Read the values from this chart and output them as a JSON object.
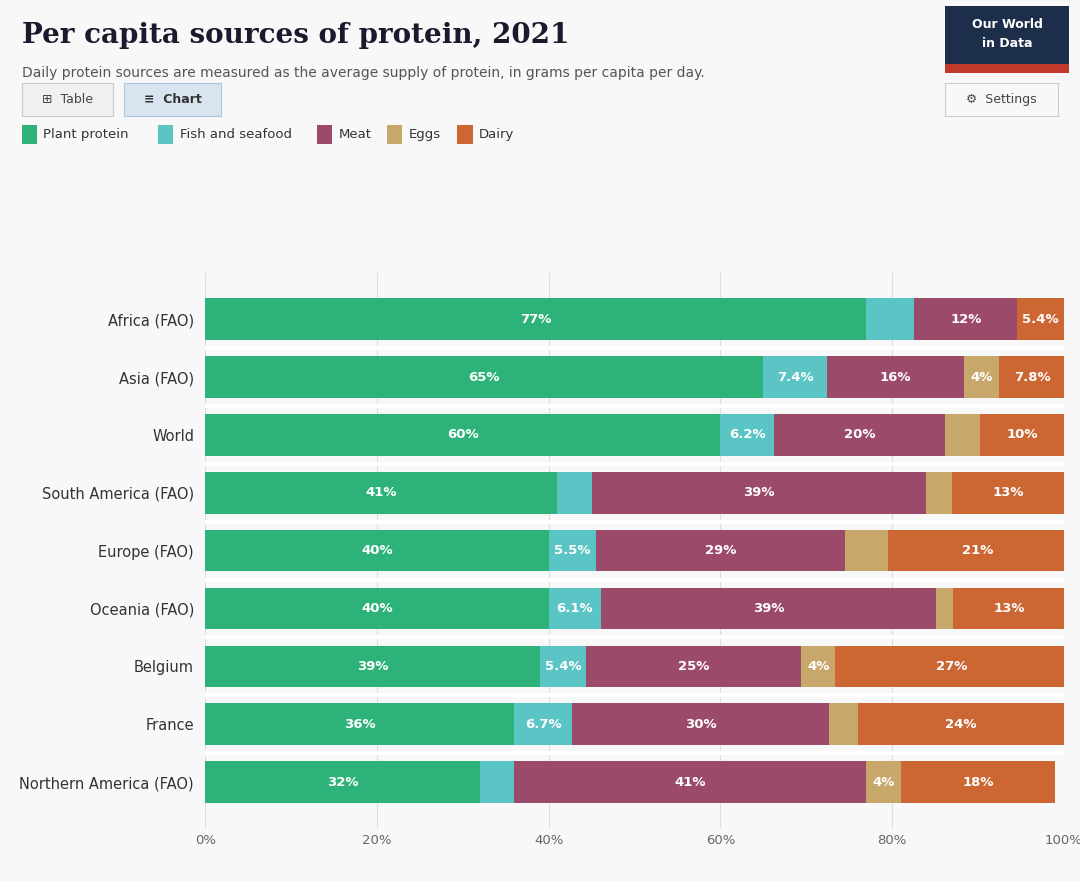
{
  "title": "Per capita sources of protein, 2021",
  "subtitle": "Daily protein sources are measured as the average supply of protein, in grams per capita per day.",
  "categories": [
    "Africa (FAO)",
    "Asia (FAO)",
    "World",
    "South America (FAO)",
    "Europe (FAO)",
    "Oceania (FAO)",
    "Belgium",
    "France",
    "Northern America (FAO)"
  ],
  "series": {
    "Plant protein": [
      77,
      65,
      60,
      41,
      40,
      40,
      39,
      36,
      32
    ],
    "Fish and seafood": [
      5.6,
      7.4,
      6.2,
      4.0,
      5.5,
      6.1,
      5.4,
      6.7,
      4.0
    ],
    "Meat": [
      12,
      16,
      20,
      39,
      29,
      39,
      25,
      30,
      41
    ],
    "Eggs": [
      0,
      4,
      4,
      3,
      5,
      2,
      4,
      3.3,
      4
    ],
    "Dairy": [
      5.4,
      7.8,
      10,
      13,
      21,
      13,
      27,
      24,
      18
    ]
  },
  "labels": {
    "Plant protein": [
      "77%",
      "65%",
      "60%",
      "41%",
      "40%",
      "40%",
      "39%",
      "36%",
      "32%"
    ],
    "Fish and seafood": [
      "",
      "7.4%",
      "6.2%",
      "",
      "5.5%",
      "6.1%",
      "5.4%",
      "6.7%",
      ""
    ],
    "Meat": [
      "12%",
      "16%",
      "20%",
      "39%",
      "29%",
      "39%",
      "25%",
      "30%",
      "41%"
    ],
    "Eggs": [
      "",
      "4%",
      "",
      "",
      "",
      "",
      "4%",
      "",
      "4%"
    ],
    "Dairy": [
      "5.4%",
      "7.8%",
      "10%",
      "13%",
      "21%",
      "13%",
      "27%",
      "24%",
      "18%"
    ]
  },
  "colors": {
    "Plant protein": "#2db37a",
    "Fish and seafood": "#5bc4c4",
    "Meat": "#9b4a6a",
    "Eggs": "#c8a86a",
    "Dairy": "#cc6633"
  },
  "background_color": "#f8f8f8",
  "logo_bg": "#1c2e4a",
  "logo_red": "#c0392b"
}
